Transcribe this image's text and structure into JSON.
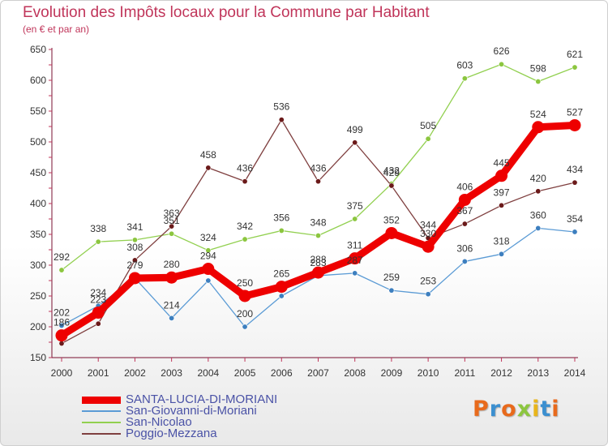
{
  "header": {
    "title": "Evolution des Impôts locaux pour la Commune par Habitant",
    "subtitle": "(en € et par an)"
  },
  "brand": {
    "text": "Proxiti",
    "colors": [
      "#e86a1c",
      "#3b8fd0",
      "#e86a1c",
      "#8cc63f",
      "#e8b51c",
      "#3b8fd0",
      "#e86a1c"
    ]
  },
  "chart_data": {
    "type": "line",
    "x": [
      2000,
      2001,
      2002,
      2003,
      2004,
      2005,
      2006,
      2007,
      2008,
      2009,
      2010,
      2011,
      2012,
      2013,
      2014
    ],
    "ylim": [
      150,
      650
    ],
    "yticks": [
      150,
      200,
      250,
      300,
      350,
      400,
      450,
      500,
      550,
      600,
      650
    ],
    "grid": false,
    "legend_position": "bottom-left",
    "series": [
      {
        "name": "SANTA-LUCIA-DI-MORIANI",
        "color": "#ee0000",
        "emphasis": true,
        "values": [
          186,
          223,
          279,
          280,
          294,
          250,
          265,
          288,
          311,
          352,
          330,
          406,
          445,
          524,
          527
        ],
        "labels": [
          "186",
          "223",
          "279",
          "280",
          "294",
          "250",
          "265",
          "288",
          "311",
          "352",
          "330",
          "406",
          "445",
          "524",
          "527"
        ]
      },
      {
        "name": "San-Giovanni-di-Moriani",
        "color": "#5b9bd5",
        "point_color": "#3d7fbf",
        "values": [
          202,
          234,
          279,
          214,
          275,
          200,
          250,
          283,
          287,
          259,
          253,
          306,
          318,
          360,
          354
        ],
        "labels": [
          "202",
          "234",
          "",
          "214",
          "",
          "200",
          "",
          "283",
          "287",
          "259",
          "253",
          "306",
          "318",
          "360",
          "354"
        ]
      },
      {
        "name": "San-Nicolao",
        "color": "#92d050",
        "point_color": "#8cc63f",
        "values": [
          292,
          338,
          341,
          351,
          324,
          342,
          356,
          348,
          375,
          432,
          505,
          603,
          626,
          598,
          621
        ],
        "labels": [
          "292",
          "338",
          "341",
          "351",
          "324",
          "342",
          "356",
          "348",
          "375",
          "432",
          "505",
          "603",
          "626",
          "598",
          "621"
        ]
      },
      {
        "name": "Poggio-Mezzana",
        "color": "#7f3f3f",
        "point_color": "#6b1a1a",
        "values": [
          173,
          205,
          308,
          363,
          458,
          436,
          536,
          436,
          499,
          429,
          344,
          367,
          397,
          420,
          434
        ],
        "labels": [
          "",
          "",
          "308",
          "363",
          "458",
          "436",
          "536",
          "436",
          "499",
          "429",
          "344",
          "367",
          "397",
          "420",
          "434"
        ]
      }
    ]
  }
}
